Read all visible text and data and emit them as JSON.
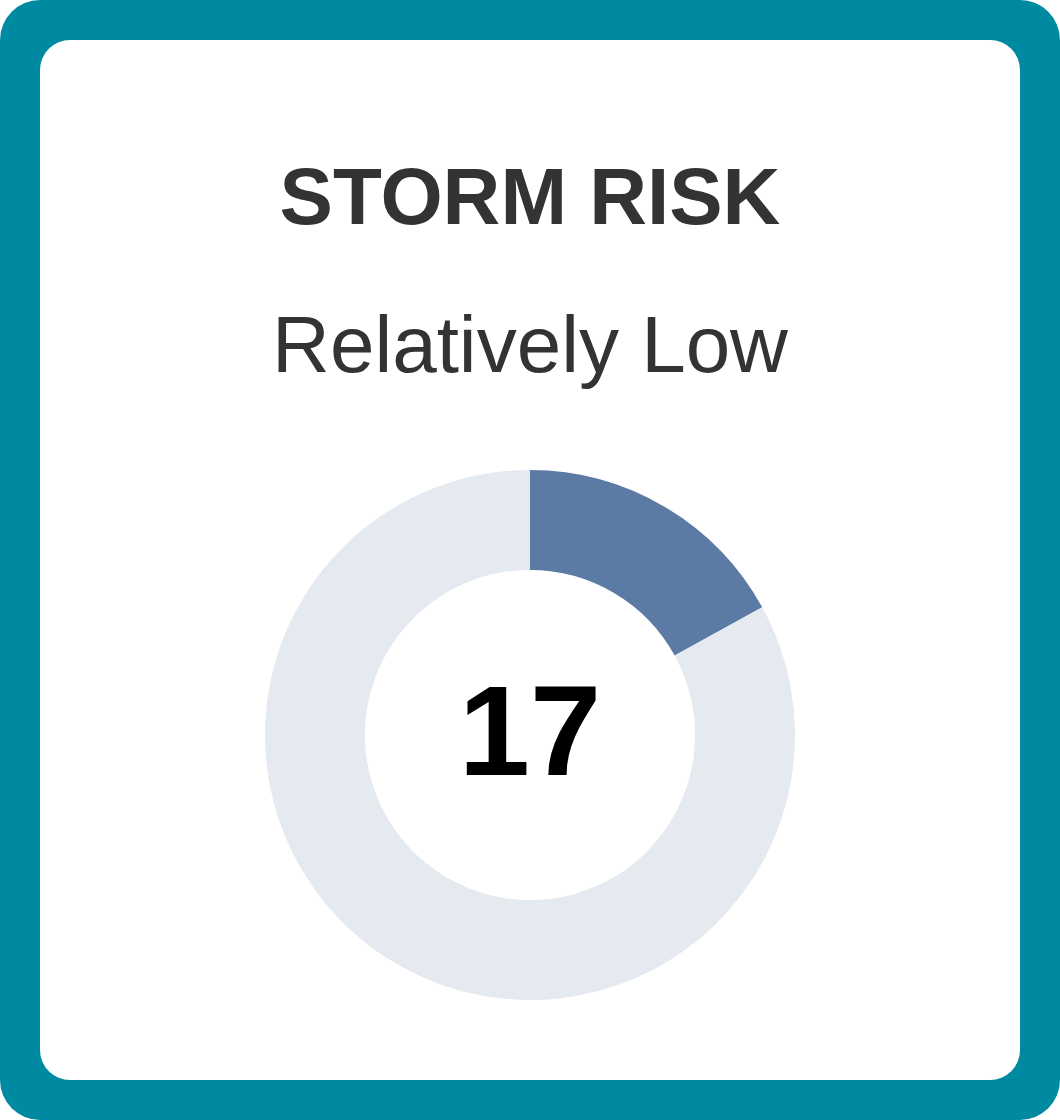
{
  "chart_data": {
    "type": "donut",
    "title": "STORM RISK",
    "subtitle": "Relatively Low",
    "categories": [
      null,
      null
    ],
    "values": [
      17,
      83
    ],
    "colors": [
      "#5b7ba5",
      "#e5e9f0"
    ],
    "value_labels": [
      "17",
      null
    ]
  }
}
